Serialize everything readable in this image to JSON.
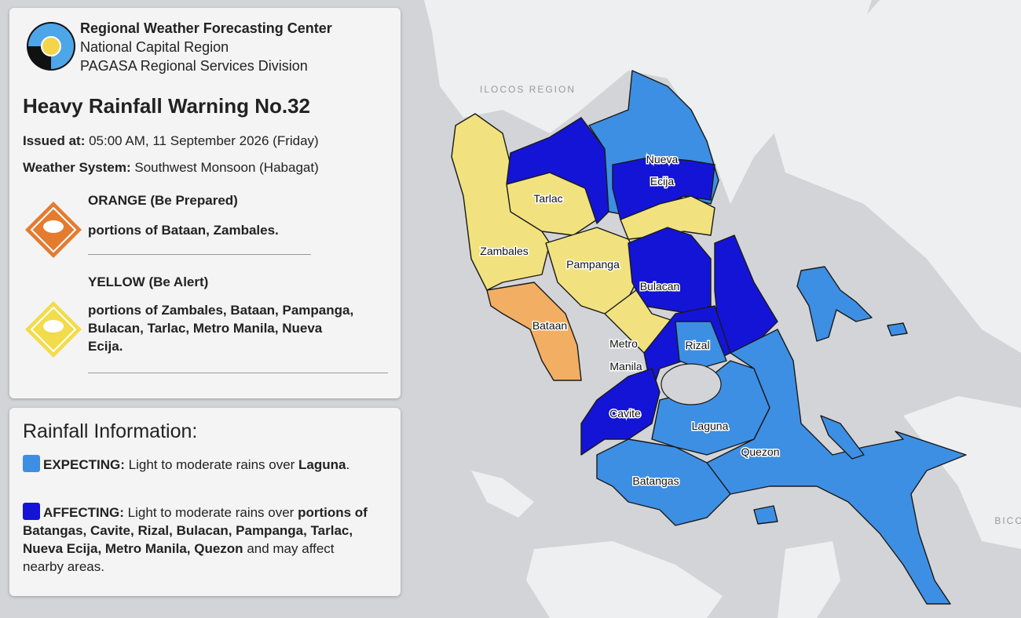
{
  "header": {
    "org": "Regional Weather Forecasting Center",
    "region": "National Capital Region",
    "division": "PAGASA Regional Services Division"
  },
  "warning": {
    "title": "Heavy Rainfall Warning No.32",
    "issued": {
      "label": "Issued at:",
      "value": "05:00 AM, 11 September 2026 (Friday)"
    },
    "system": {
      "label": "Weather System:",
      "value": "Southwest Monsoon (Habagat)"
    },
    "levels": [
      {
        "heading": "ORANGE (Be Prepared)",
        "areas": "portions of Bataan, Zambales."
      },
      {
        "heading": "YELLOW (Be Alert)",
        "areas": "portions of Zambales, Bataan, Pampanga, Bulacan, Tarlac, Metro Manila, Nueva Ecija."
      }
    ]
  },
  "rainfall": {
    "title": "Rainfall Information:",
    "items": [
      {
        "label": "EXPECTING:",
        "text": "Light to moderate rains over",
        "areas": "Laguna",
        "end": "."
      },
      {
        "label": "AFFECTING:",
        "text": "Light to moderate rains over",
        "areas": "portions of Batangas, Cavite, Rizal, Bulacan, Pampanga, Tarlac, Nueva Ecija, Metro Manila, Quezon",
        "end": "and may affect nearby areas."
      }
    ]
  },
  "map": {
    "regions": [
      "ILOCOS REGION",
      "BICO"
    ],
    "provinces": [
      [
        "Nueva",
        "Ecija"
      ],
      [
        "Tarlac"
      ],
      [
        "Zambales"
      ],
      [
        "Pampanga"
      ],
      [
        "Bulacan"
      ],
      [
        "Bataan"
      ],
      [
        "Metro",
        "Manila"
      ],
      [
        "Rizal"
      ],
      [
        "Cavite"
      ],
      [
        "Laguna"
      ],
      [
        "Quezon"
      ],
      [
        "Batangas"
      ]
    ]
  }
}
